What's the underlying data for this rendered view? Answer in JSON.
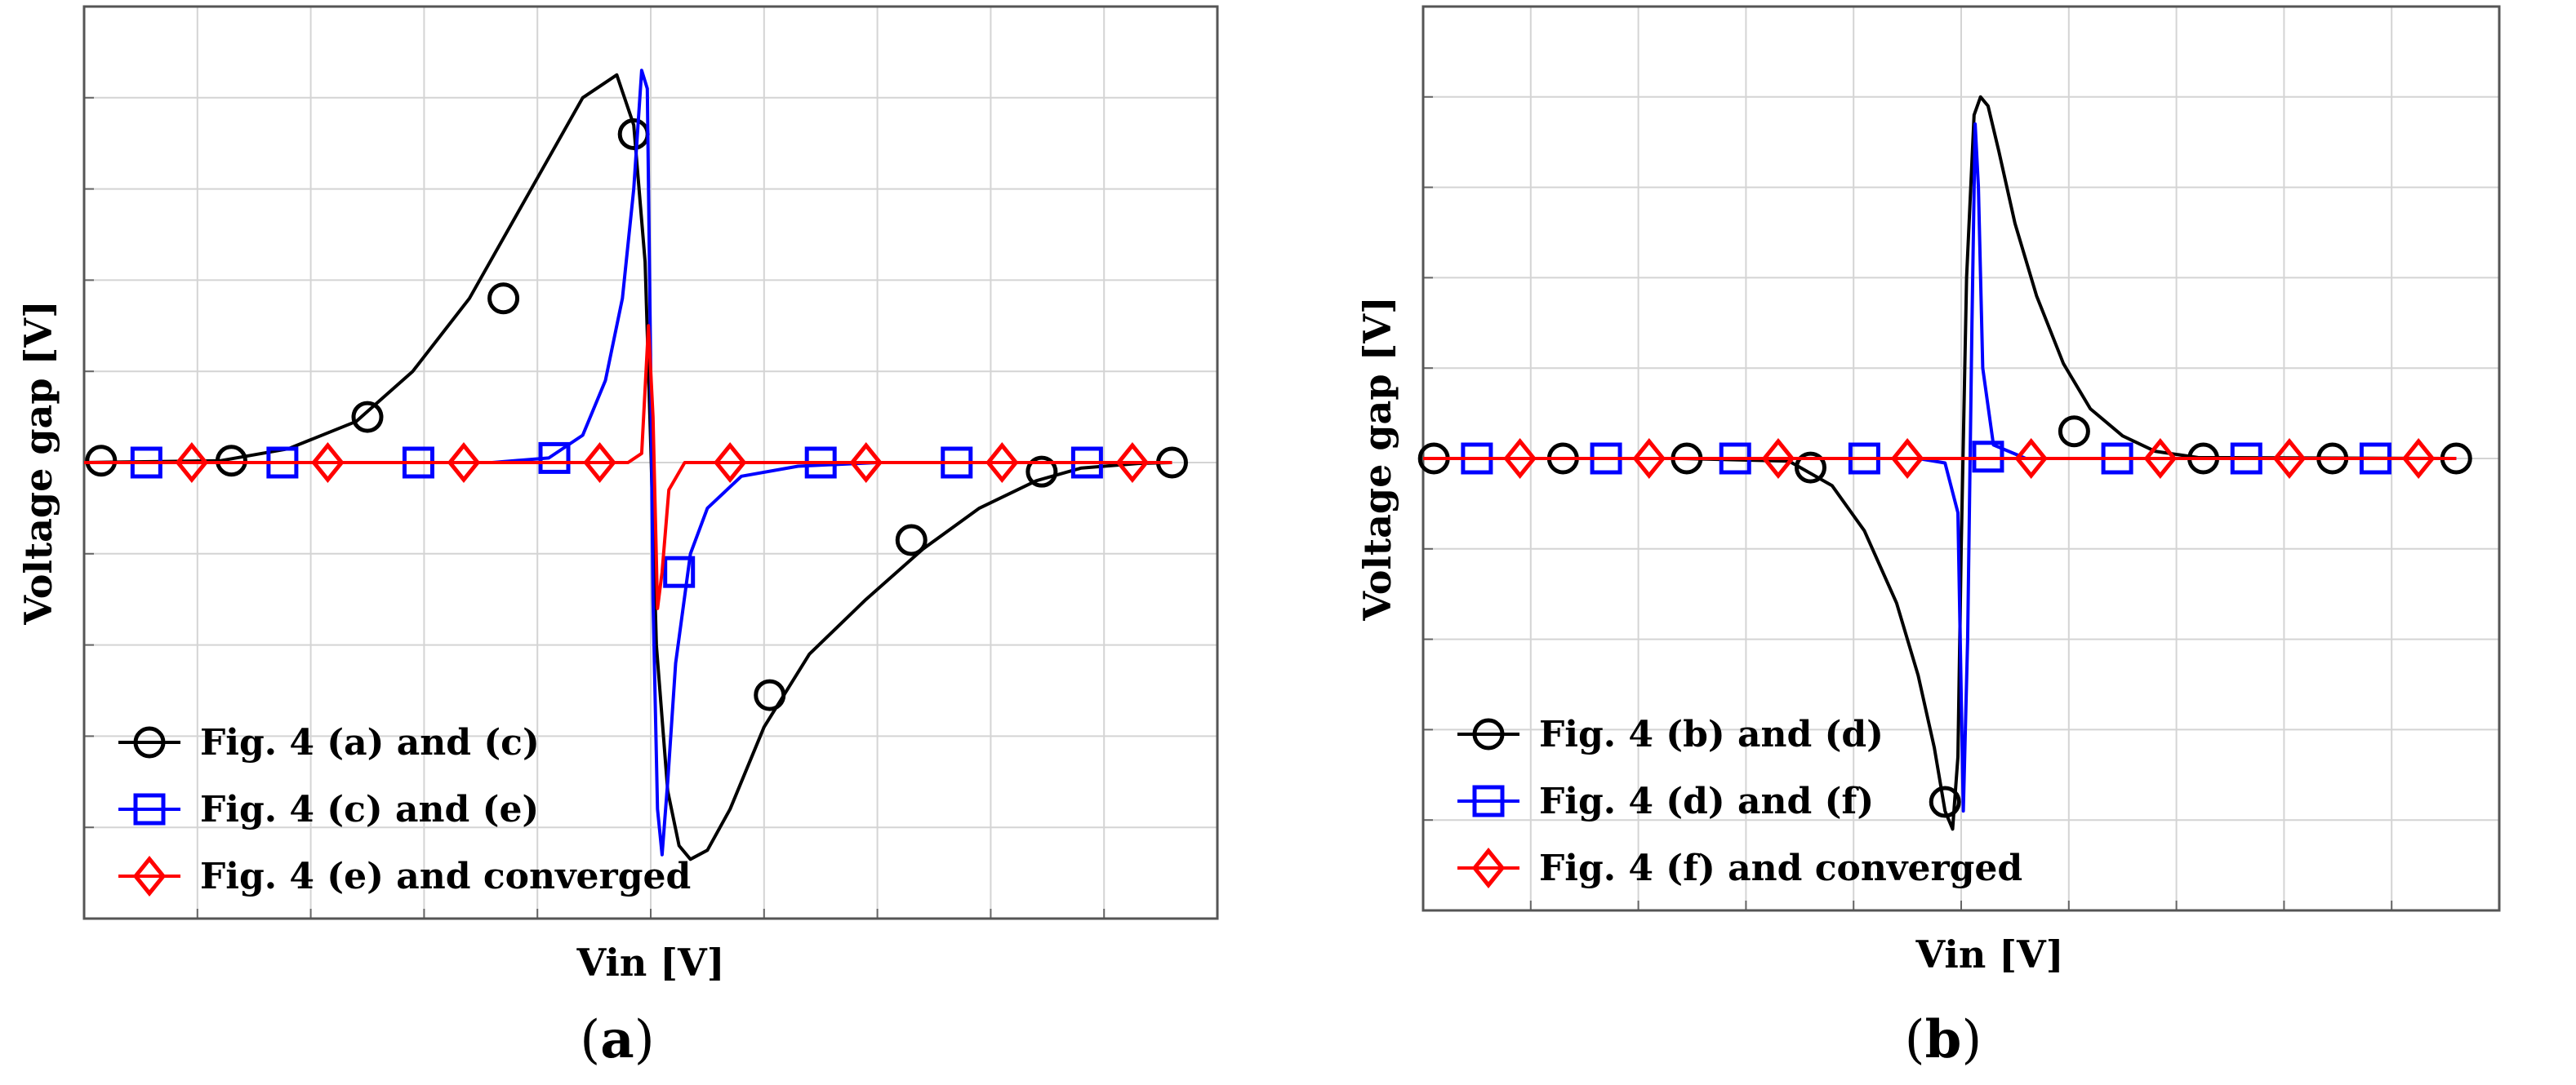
{
  "chart_data": [
    {
      "type": "line",
      "panel_label": "a",
      "xlabel": "Vin [V]",
      "ylabel": "Voltage gap [V]",
      "x_range": [
        0,
        10
      ],
      "y_range": [
        -5,
        5
      ],
      "tick_labels_shown": false,
      "grid": true,
      "legend_position": "bottom-left",
      "series": [
        {
          "name": "Fig. 4 (a) and (c)",
          "color": "#000000",
          "marker": "circle",
          "x": [
            0.0,
            1.2,
            1.8,
            2.4,
            2.9,
            3.4,
            3.9,
            4.4,
            4.7,
            4.85,
            4.95,
            5.0,
            5.05,
            5.15,
            5.25,
            5.35,
            5.5,
            5.7,
            6.0,
            6.4,
            6.9,
            7.4,
            7.9,
            8.4,
            8.8,
            9.3,
            9.6
          ],
          "y": [
            0.0,
            0.02,
            0.15,
            0.45,
            1.0,
            1.8,
            2.9,
            4.0,
            4.25,
            3.7,
            2.2,
            0.2,
            -2.0,
            -3.6,
            -4.2,
            -4.35,
            -4.25,
            -3.8,
            -2.9,
            -2.1,
            -1.5,
            -0.95,
            -0.5,
            -0.2,
            -0.06,
            -0.01,
            0.0
          ],
          "markers_x": [
            0.15,
            1.3,
            2.5,
            3.7,
            4.85,
            6.05,
            7.3,
            8.45,
            9.6
          ],
          "markers_y": [
            0.02,
            0.02,
            0.5,
            1.8,
            3.6,
            -2.55,
            -0.85,
            -0.1,
            0.0
          ]
        },
        {
          "name": "Fig. 4 (c) and (e)",
          "color": "#0000ff",
          "marker": "square",
          "x": [
            0.0,
            3.6,
            4.1,
            4.4,
            4.6,
            4.75,
            4.85,
            4.92,
            4.97,
            5.0,
            5.02,
            5.06,
            5.1,
            5.15,
            5.22,
            5.35,
            5.5,
            5.8,
            6.3,
            7.0,
            9.6
          ],
          "y": [
            0.0,
            0.0,
            0.05,
            0.3,
            0.9,
            1.8,
            3.0,
            4.3,
            4.1,
            1.0,
            -1.5,
            -3.8,
            -4.3,
            -3.5,
            -2.2,
            -1.0,
            -0.5,
            -0.15,
            -0.04,
            0.0,
            0.0
          ],
          "markers_x": [
            0.55,
            1.75,
            2.95,
            4.15,
            5.25,
            6.5,
            7.7,
            8.85
          ],
          "markers_y": [
            0.0,
            0.0,
            0.0,
            0.05,
            -1.2,
            0.0,
            0.0,
            0.0
          ]
        },
        {
          "name": "Fig. 4 (e) and converged",
          "color": "#ff0000",
          "marker": "diamond",
          "x": [
            0.0,
            4.8,
            4.92,
            4.98,
            5.02,
            5.06,
            5.1,
            5.16,
            5.3,
            9.6
          ],
          "y": [
            0.0,
            0.0,
            0.1,
            1.5,
            0.5,
            -1.6,
            -1.2,
            -0.3,
            0.0,
            0.0
          ],
          "markers_x": [
            0.95,
            2.15,
            3.35,
            4.55,
            5.7,
            6.9,
            8.1,
            9.25
          ],
          "markers_y": [
            0.0,
            0.0,
            0.0,
            0.0,
            0.0,
            0.0,
            0.0,
            0.0
          ]
        }
      ]
    },
    {
      "type": "line",
      "panel_label": "b",
      "xlabel": "Vin [V]",
      "ylabel": "Voltage gap [V]",
      "x_range": [
        0,
        10
      ],
      "y_range": [
        -5,
        5
      ],
      "tick_labels_shown": false,
      "grid": true,
      "legend_position": "bottom-left",
      "series": [
        {
          "name": "Fig. 4 (b) and (d)",
          "color": "#000000",
          "marker": "circle",
          "x": [
            0.0,
            2.4,
            3.4,
            3.8,
            4.1,
            4.4,
            4.6,
            4.75,
            4.85,
            4.92,
            4.97,
            5.0,
            5.05,
            5.12,
            5.18,
            5.25,
            5.35,
            5.5,
            5.7,
            5.95,
            6.2,
            6.5,
            6.8,
            7.2,
            9.6
          ],
          "y": [
            0.0,
            0.0,
            -0.03,
            -0.3,
            -0.8,
            -1.6,
            -2.4,
            -3.2,
            -3.9,
            -4.1,
            -3.3,
            -1.0,
            2.0,
            3.8,
            4.0,
            3.9,
            3.4,
            2.6,
            1.8,
            1.05,
            0.55,
            0.25,
            0.08,
            0.01,
            0.0
          ],
          "markers_x": [
            0.1,
            1.3,
            2.45,
            3.6,
            4.85,
            6.05,
            7.25,
            8.45,
            9.6
          ],
          "markers_y": [
            0.0,
            0.0,
            0.0,
            -0.1,
            -3.8,
            0.3,
            0.0,
            0.0,
            0.0
          ]
        },
        {
          "name": "Fig. 4 (d) and (f)",
          "color": "#0000ff",
          "marker": "square",
          "x": [
            0.0,
            4.6,
            4.85,
            4.97,
            5.02,
            5.06,
            5.1,
            5.13,
            5.16,
            5.2,
            5.3,
            5.6,
            9.6
          ],
          "y": [
            0.0,
            0.0,
            -0.05,
            -0.6,
            -3.9,
            -2.0,
            1.5,
            3.7,
            3.0,
            1.0,
            0.15,
            0.0,
            0.0
          ],
          "markers_x": [
            0.5,
            1.7,
            2.9,
            4.1,
            5.25,
            6.45,
            7.65,
            8.85
          ],
          "markers_y": [
            0.0,
            0.0,
            0.0,
            0.0,
            0.02,
            0.0,
            0.0,
            0.0
          ]
        },
        {
          "name": "Fig. 4 (f) and converged",
          "color": "#ff0000",
          "marker": "diamond",
          "x": [
            0.0,
            9.6
          ],
          "y": [
            0.0,
            0.0
          ],
          "markers_x": [
            0.9,
            2.1,
            3.3,
            4.5,
            5.65,
            6.85,
            8.05,
            9.25
          ],
          "markers_y": [
            0.0,
            0.0,
            0.0,
            0.0,
            0.0,
            0.0,
            0.0,
            0.0
          ]
        }
      ]
    }
  ]
}
